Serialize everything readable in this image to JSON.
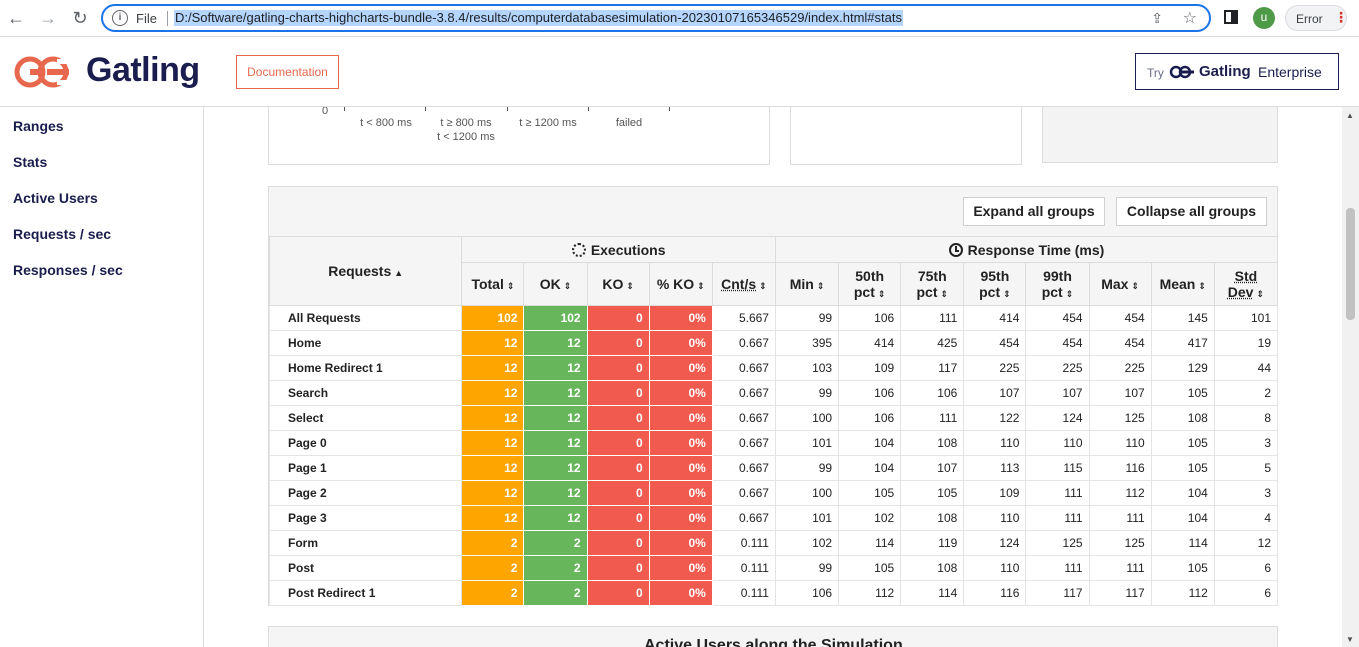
{
  "browser": {
    "file_label": "File",
    "url": "D:/Software/gatling-charts-highcharts-bundle-3.8.4/results/computerdatabasesimulation-20230107165346529/index.html#stats",
    "profile_initial": "u",
    "error_label": "Error",
    "icons": [
      "back-icon",
      "forward-icon",
      "reload-icon",
      "info-icon",
      "share-icon",
      "star-icon",
      "side-panel-icon",
      "more-icon"
    ]
  },
  "header": {
    "brand": "Gatling",
    "documentation_label": "Documentation",
    "enterprise": {
      "try": "Try",
      "brand": "Gatling",
      "suffix": "Enterprise"
    },
    "colors": {
      "brand": "#1a1d4d",
      "accent": "#e8684d"
    }
  },
  "sidebar": {
    "items": [
      {
        "label": "Ranges"
      },
      {
        "label": "Stats"
      },
      {
        "label": "Active Users"
      },
      {
        "label": "Requests / sec"
      },
      {
        "label": "Responses / sec"
      }
    ]
  },
  "ranges_chart": {
    "zero_label": "0",
    "categories": [
      {
        "line1": "t < 800 ms",
        "line2": ""
      },
      {
        "line1": "t ≥ 800 ms",
        "line2": "t < 1200 ms"
      },
      {
        "line1": "t ≥ 1200 ms",
        "line2": ""
      },
      {
        "line1": "failed",
        "line2": ""
      }
    ]
  },
  "stats": {
    "expand_label": "Expand all groups",
    "collapse_label": "Collapse all groups",
    "groups": {
      "executions": "Executions",
      "response_time": "Response Time (ms)"
    },
    "requests_header": "Requests",
    "columns": {
      "total": "Total",
      "ok": "OK",
      "ko": "KO",
      "pko": "% KO",
      "cnt": "Cnt/s",
      "min": "Min",
      "p50_a": "50th",
      "p50_b": "pct",
      "p75_a": "75th",
      "p75_b": "pct",
      "p95_a": "95th",
      "p95_b": "pct",
      "p99_a": "99th",
      "p99_b": "pct",
      "max": "Max",
      "mean": "Mean",
      "std_a": "Std",
      "std_b": "Dev"
    },
    "colors": {
      "total": "#ffa500",
      "ok": "#68b65c",
      "ko": "#f15b4f"
    },
    "rows": [
      {
        "name": "All Requests",
        "total": "102",
        "ok": "102",
        "ko": "0",
        "pko": "0%",
        "cnt": "5.667",
        "min": "99",
        "p50": "106",
        "p75": "111",
        "p95": "414",
        "p99": "454",
        "max": "454",
        "mean": "145",
        "std": "101"
      },
      {
        "name": "Home",
        "total": "12",
        "ok": "12",
        "ko": "0",
        "pko": "0%",
        "cnt": "0.667",
        "min": "395",
        "p50": "414",
        "p75": "425",
        "p95": "454",
        "p99": "454",
        "max": "454",
        "mean": "417",
        "std": "19"
      },
      {
        "name": "Home Redirect 1",
        "total": "12",
        "ok": "12",
        "ko": "0",
        "pko": "0%",
        "cnt": "0.667",
        "min": "103",
        "p50": "109",
        "p75": "117",
        "p95": "225",
        "p99": "225",
        "max": "225",
        "mean": "129",
        "std": "44"
      },
      {
        "name": "Search",
        "total": "12",
        "ok": "12",
        "ko": "0",
        "pko": "0%",
        "cnt": "0.667",
        "min": "99",
        "p50": "106",
        "p75": "106",
        "p95": "107",
        "p99": "107",
        "max": "107",
        "mean": "105",
        "std": "2"
      },
      {
        "name": "Select",
        "total": "12",
        "ok": "12",
        "ko": "0",
        "pko": "0%",
        "cnt": "0.667",
        "min": "100",
        "p50": "106",
        "p75": "111",
        "p95": "122",
        "p99": "124",
        "max": "125",
        "mean": "108",
        "std": "8"
      },
      {
        "name": "Page 0",
        "total": "12",
        "ok": "12",
        "ko": "0",
        "pko": "0%",
        "cnt": "0.667",
        "min": "101",
        "p50": "104",
        "p75": "108",
        "p95": "110",
        "p99": "110",
        "max": "110",
        "mean": "105",
        "std": "3"
      },
      {
        "name": "Page 1",
        "total": "12",
        "ok": "12",
        "ko": "0",
        "pko": "0%",
        "cnt": "0.667",
        "min": "99",
        "p50": "104",
        "p75": "107",
        "p95": "113",
        "p99": "115",
        "max": "116",
        "mean": "105",
        "std": "5"
      },
      {
        "name": "Page 2",
        "total": "12",
        "ok": "12",
        "ko": "0",
        "pko": "0%",
        "cnt": "0.667",
        "min": "100",
        "p50": "105",
        "p75": "105",
        "p95": "109",
        "p99": "111",
        "max": "112",
        "mean": "104",
        "std": "3"
      },
      {
        "name": "Page 3",
        "total": "12",
        "ok": "12",
        "ko": "0",
        "pko": "0%",
        "cnt": "0.667",
        "min": "101",
        "p50": "102",
        "p75": "108",
        "p95": "110",
        "p99": "111",
        "max": "111",
        "mean": "104",
        "std": "4"
      },
      {
        "name": "Form",
        "total": "2",
        "ok": "2",
        "ko": "0",
        "pko": "0%",
        "cnt": "0.111",
        "min": "102",
        "p50": "114",
        "p75": "119",
        "p95": "124",
        "p99": "125",
        "max": "125",
        "mean": "114",
        "std": "12"
      },
      {
        "name": "Post",
        "total": "2",
        "ok": "2",
        "ko": "0",
        "pko": "0%",
        "cnt": "0.111",
        "min": "99",
        "p50": "105",
        "p75": "108",
        "p95": "110",
        "p99": "111",
        "max": "111",
        "mean": "105",
        "std": "6"
      },
      {
        "name": "Post Redirect 1",
        "total": "2",
        "ok": "2",
        "ko": "0",
        "pko": "0%",
        "cnt": "0.111",
        "min": "106",
        "p50": "112",
        "p75": "114",
        "p95": "116",
        "p99": "117",
        "max": "117",
        "mean": "112",
        "std": "6"
      }
    ]
  },
  "active_users": {
    "title": "Active Users along the Simulation"
  }
}
